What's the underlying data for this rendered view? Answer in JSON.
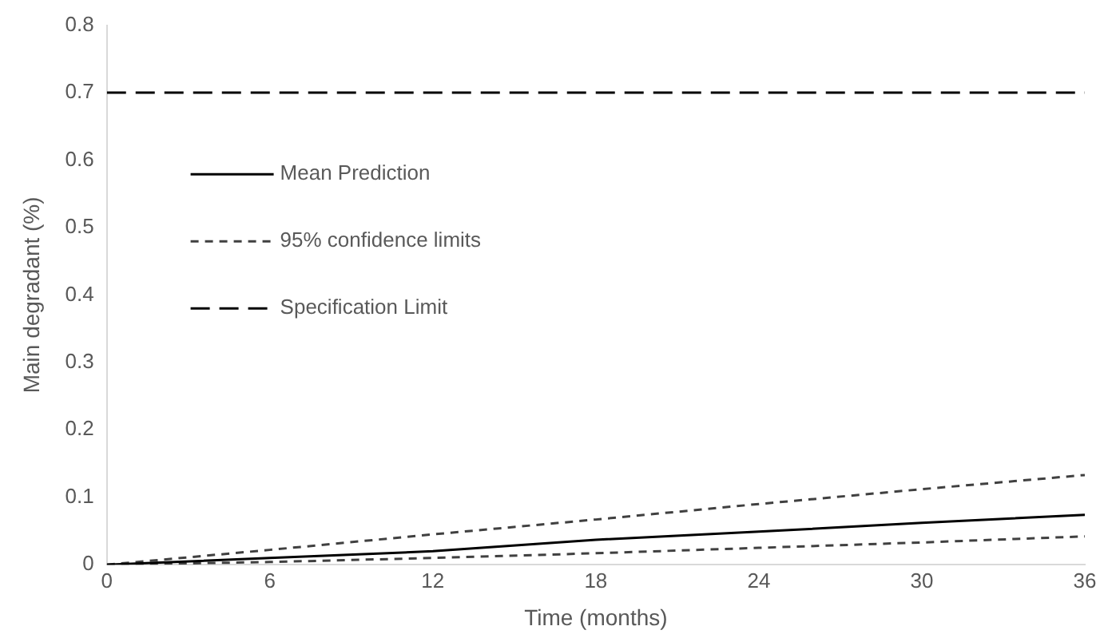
{
  "chart_data": {
    "type": "line",
    "xlabel": "Time (months)",
    "ylabel": "Main degradant (%)",
    "x": [
      0,
      6,
      12,
      18,
      24,
      30,
      36
    ],
    "series": [
      {
        "name": "Mean Prediction",
        "color": "#000000",
        "line_style": "solid",
        "values": [
          0,
          0.01,
          0.02,
          0.037,
          0.049,
          0.062,
          0.074
        ]
      },
      {
        "name": "95% confidence limits",
        "color": "#404040",
        "line_style": "dotted",
        "values": [
          0,
          0.022,
          0.045,
          0.067,
          0.09,
          0.112,
          0.133
        ]
      },
      {
        "color": "#404040",
        "line_style": "dotted",
        "values": [
          0,
          0.004,
          0.01,
          0.017,
          0.025,
          0.033,
          0.042
        ]
      },
      {
        "name": "Specification Limit",
        "color": "#000000",
        "line_style": "dashed",
        "x": [
          0,
          36
        ],
        "values": [
          0.7,
          0.7
        ]
      }
    ],
    "xlim": [
      0,
      36
    ],
    "xticks": [
      0,
      6,
      12,
      18,
      24,
      30,
      36
    ],
    "ylim": [
      0,
      0.8
    ],
    "yticks": [
      0,
      0.1,
      0.2,
      0.3,
      0.4,
      0.5,
      0.6,
      0.7,
      0.8
    ],
    "grid": false,
    "legend": "left",
    "marker": "none"
  }
}
